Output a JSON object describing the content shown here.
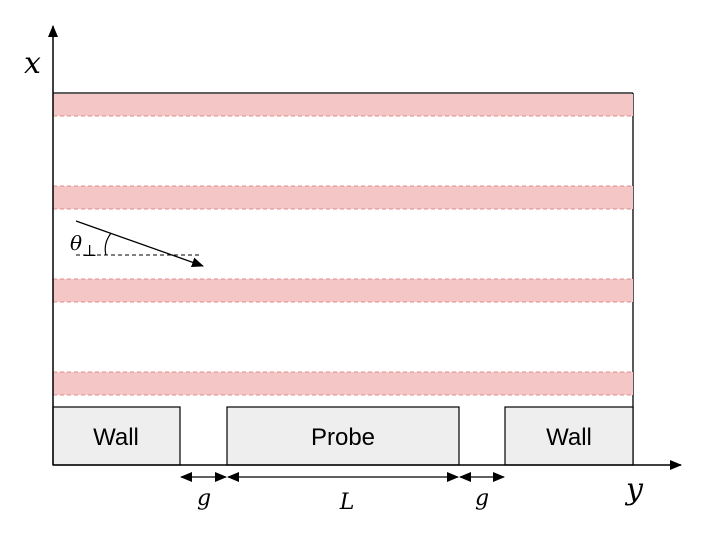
{
  "axes": {
    "x_label": "x",
    "y_label": "y"
  },
  "boxes": {
    "left_wall": "Wall",
    "probe": "Probe",
    "right_wall": "Wall"
  },
  "dimensions": {
    "gap_left": "g",
    "length": "L",
    "gap_right": "g"
  },
  "angle": {
    "symbol": "θ",
    "subscript": "⊥"
  },
  "colors": {
    "band_fill": "#f4c6c6",
    "band_edge": "#e08a8a",
    "box_fill": "#eeeeee",
    "line": "#000000"
  }
}
